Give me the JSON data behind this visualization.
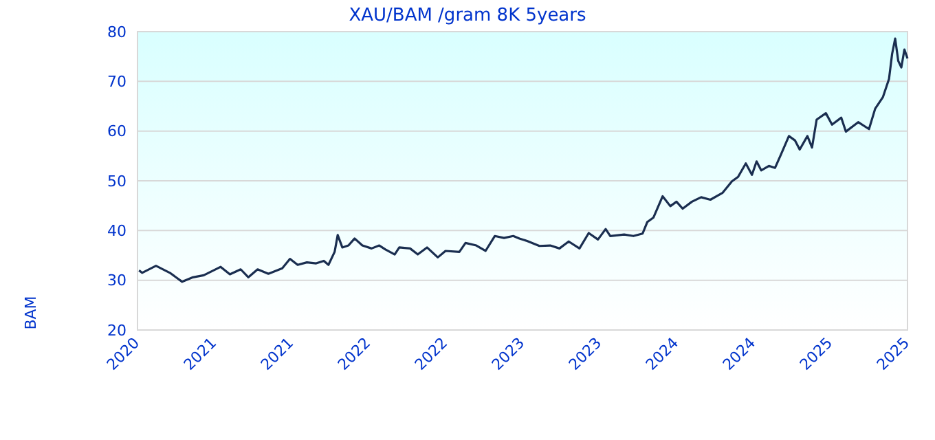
{
  "chart_data": {
    "type": "line",
    "title": "XAU/BAM /gram 8K 5years",
    "ylabel": "BAM",
    "x": [
      2020.21,
      2020.23,
      2020.32,
      2020.41,
      2020.49,
      2020.56,
      2020.63,
      2020.74,
      2020.8,
      2020.87,
      2020.92,
      2020.98,
      2021.05,
      2021.14,
      2021.19,
      2021.24,
      2021.3,
      2021.36,
      2021.41,
      2021.44,
      2021.48,
      2021.5,
      2021.53,
      2021.57,
      2021.61,
      2021.66,
      2021.72,
      2021.77,
      2021.81,
      2021.87,
      2021.9,
      2021.97,
      2022.02,
      2022.08,
      2022.15,
      2022.2,
      2022.29,
      2022.33,
      2022.4,
      2022.46,
      2022.52,
      2022.58,
      2022.64,
      2022.68,
      2022.73,
      2022.81,
      2022.88,
      2022.94,
      2023,
      2023.07,
      2023.13,
      2023.19,
      2023.24,
      2023.27,
      2023.36,
      2023.42,
      2023.48,
      2023.51,
      2023.55,
      2023.61,
      2023.66,
      2023.7,
      2023.74,
      2023.8,
      2023.86,
      2023.92,
      2024,
      2024.06,
      2024.1,
      2024.15,
      2024.19,
      2024.22,
      2024.25,
      2024.3,
      2024.34,
      2024.38,
      2024.43,
      2024.47,
      2024.5,
      2024.55,
      2024.58,
      2024.61,
      2024.67,
      2024.71,
      2024.77,
      2024.8,
      2024.88,
      2024.95,
      2024.99,
      2025.04,
      2025.08,
      2025.1,
      2025.12,
      2025.14,
      2025.16,
      2025.18,
      2025.2
    ],
    "series": [
      {
        "color": "#1a2e50",
        "values": [
          32,
          31.5,
          32.9,
          31.5,
          29.7,
          30.6,
          31,
          32.7,
          31.2,
          32.2,
          30.6,
          32.2,
          31.3,
          32.4,
          34.3,
          33.1,
          33.6,
          33.4,
          33.9,
          33.1,
          35.7,
          39.1,
          36.6,
          37,
          38.4,
          37,
          36.4,
          37,
          36.2,
          35.2,
          36.6,
          36.4,
          35.2,
          36.6,
          34.6,
          35.9,
          35.7,
          37.5,
          37,
          35.9,
          38.9,
          38.5,
          38.9,
          38.4,
          37.9,
          36.9,
          37,
          36.4,
          37.8,
          36.4,
          39.5,
          38.2,
          40.3,
          38.9,
          39.2,
          38.9,
          39.4,
          41.7,
          42.6,
          46.9,
          44.9,
          45.8,
          44.4,
          45.8,
          46.7,
          46.2,
          47.6,
          49.9,
          50.8,
          53.5,
          51.2,
          53.9,
          52.1,
          53,
          52.6,
          55.4,
          59,
          58.1,
          56.3,
          59,
          56.7,
          62.3,
          63.6,
          61.3,
          62.7,
          59.9,
          61.8,
          60.4,
          64.5,
          66.8,
          70.5,
          75.5,
          78.6,
          74.1,
          72.8,
          76.4,
          74.6
        ]
      }
    ],
    "xlim": [
      2020.2,
      2025.2
    ],
    "xticks": [
      {
        "value": 2020.2,
        "label": "2020"
      },
      {
        "value": 2020.7,
        "label": "2021"
      },
      {
        "value": 2021.2,
        "label": "2021"
      },
      {
        "value": 2021.7,
        "label": "2022"
      },
      {
        "value": 2022.2,
        "label": "2022"
      },
      {
        "value": 2022.7,
        "label": "2023"
      },
      {
        "value": 2023.2,
        "label": "2023"
      },
      {
        "value": 2023.7,
        "label": "2024"
      },
      {
        "value": 2024.2,
        "label": "2024"
      },
      {
        "value": 2024.7,
        "label": "2025"
      },
      {
        "value": 2025.2,
        "label": "2025"
      }
    ],
    "ylim": [
      20,
      80
    ],
    "yticks": [
      20,
      30,
      40,
      50,
      60,
      70,
      80
    ],
    "grid": "y",
    "line_style": "solid"
  }
}
